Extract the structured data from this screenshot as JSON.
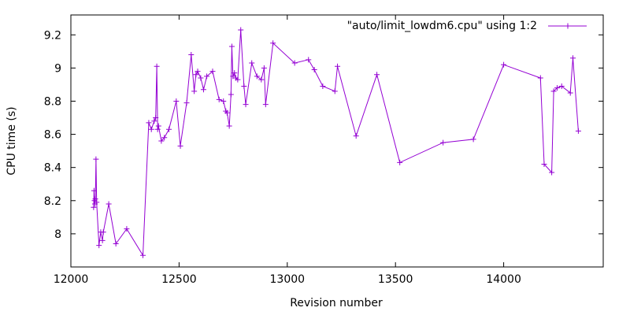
{
  "chart_data": {
    "type": "line",
    "xlabel": "Revision number",
    "ylabel": "CPU time (s)",
    "xlim": [
      12000,
      14460
    ],
    "ylim": [
      7.8,
      9.32
    ],
    "xticks": [
      12000,
      12500,
      13000,
      13500,
      14000
    ],
    "yticks": [
      8,
      8.2,
      8.4,
      8.6,
      8.8,
      9,
      9.2
    ],
    "xtick_labels": [
      "12000",
      "12500",
      "13000",
      "13500",
      "14000"
    ],
    "ytick_labels": [
      "8",
      "8.2",
      "8.4",
      "8.6",
      "8.8",
      "9",
      "9.2"
    ],
    "grid": false,
    "legend_position": "top-right",
    "series": [
      {
        "name": "\"auto/limit_lowdm6.cpu\" using 1:2",
        "color": "#9400d3",
        "marker": "plus",
        "points": [
          [
            12105,
            8.16
          ],
          [
            12107,
            8.26
          ],
          [
            12109,
            8.2
          ],
          [
            12111,
            8.18
          ],
          [
            12113,
            8.21
          ],
          [
            12116,
            8.45
          ],
          [
            12119,
            8.19
          ],
          [
            12130,
            7.93
          ],
          [
            12138,
            8.01
          ],
          [
            12146,
            7.96
          ],
          [
            12150,
            8.01
          ],
          [
            12175,
            8.18
          ],
          [
            12208,
            7.94
          ],
          [
            12258,
            8.03
          ],
          [
            12333,
            7.87
          ],
          [
            12360,
            8.67
          ],
          [
            12372,
            8.63
          ],
          [
            12385,
            8.68
          ],
          [
            12392,
            8.7
          ],
          [
            12397,
            9.01
          ],
          [
            12401,
            8.63
          ],
          [
            12405,
            8.65
          ],
          [
            12418,
            8.56
          ],
          [
            12432,
            8.58
          ],
          [
            12453,
            8.63
          ],
          [
            12487,
            8.8
          ],
          [
            12506,
            8.53
          ],
          [
            12535,
            8.79
          ],
          [
            12556,
            9.08
          ],
          [
            12570,
            8.86
          ],
          [
            12578,
            8.96
          ],
          [
            12586,
            8.98
          ],
          [
            12600,
            8.94
          ],
          [
            12613,
            8.87
          ],
          [
            12628,
            8.95
          ],
          [
            12655,
            8.98
          ],
          [
            12685,
            8.81
          ],
          [
            12705,
            8.8
          ],
          [
            12716,
            8.74
          ],
          [
            12722,
            8.73
          ],
          [
            12732,
            8.65
          ],
          [
            12740,
            8.84
          ],
          [
            12744,
            9.13
          ],
          [
            12749,
            8.95
          ],
          [
            12756,
            8.97
          ],
          [
            12762,
            8.94
          ],
          [
            12771,
            8.93
          ],
          [
            12785,
            9.23
          ],
          [
            12800,
            8.89
          ],
          [
            12808,
            8.78
          ],
          [
            12836,
            9.03
          ],
          [
            12860,
            8.95
          ],
          [
            12880,
            8.93
          ],
          [
            12893,
            9.0
          ],
          [
            12900,
            8.78
          ],
          [
            12934,
            9.15
          ],
          [
            13034,
            9.03
          ],
          [
            13098,
            9.05
          ],
          [
            13125,
            8.99
          ],
          [
            13164,
            8.89
          ],
          [
            13220,
            8.86
          ],
          [
            13232,
            9.01
          ],
          [
            13318,
            8.59
          ],
          [
            13414,
            8.96
          ],
          [
            13520,
            8.43
          ],
          [
            13720,
            8.55
          ],
          [
            13860,
            8.57
          ],
          [
            14000,
            9.02
          ],
          [
            14170,
            8.94
          ],
          [
            14187,
            8.42
          ],
          [
            14222,
            8.37
          ],
          [
            14231,
            8.86
          ],
          [
            14247,
            8.88
          ],
          [
            14268,
            8.89
          ],
          [
            14308,
            8.85
          ],
          [
            14320,
            9.06
          ],
          [
            14345,
            8.62
          ]
        ]
      }
    ]
  }
}
